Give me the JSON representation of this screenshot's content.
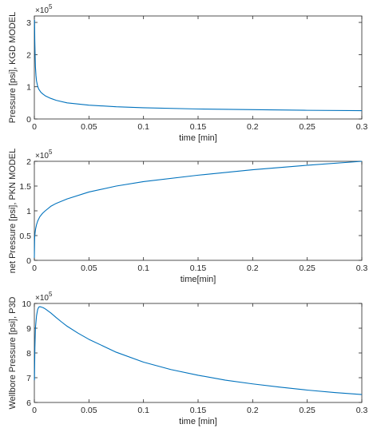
{
  "chart_data": [
    {
      "type": "line",
      "xlabel": "time [min]",
      "ylabel": "Pressure [psi], KGD MODEL",
      "y_exponent_label": "×10",
      "y_exponent": "5",
      "xlim": [
        0,
        0.3
      ],
      "ylim": [
        0,
        3.2
      ],
      "x_ticks": [
        0,
        0.05,
        0.1,
        0.15,
        0.2,
        0.25,
        0.3
      ],
      "x_tick_labels": [
        "0",
        "0.05",
        "0.1",
        "0.15",
        "0.2",
        "0.25",
        "0.3"
      ],
      "y_ticks": [
        0,
        1,
        2,
        3
      ],
      "y_tick_labels": [
        "0",
        "1",
        "2",
        "3"
      ],
      "grid": false,
      "line_color": "#0072BD",
      "series": [
        {
          "x": [
            0.0002,
            0.0004,
            0.0007,
            0.001,
            0.0015,
            0.002,
            0.003,
            0.004,
            0.006,
            0.008,
            0.01,
            0.015,
            0.02,
            0.03,
            0.05,
            0.075,
            0.1,
            0.15,
            0.2,
            0.25,
            0.3
          ],
          "y": [
            3.08,
            2.45,
            2.0,
            1.62,
            1.35,
            1.18,
            1.02,
            0.93,
            0.83,
            0.77,
            0.72,
            0.64,
            0.58,
            0.5,
            0.43,
            0.38,
            0.35,
            0.31,
            0.29,
            0.27,
            0.26
          ]
        }
      ]
    },
    {
      "type": "line",
      "xlabel": "time[min]",
      "ylabel": "net Pressure [psi], PKN MODEL",
      "y_exponent_label": "×10",
      "y_exponent": "5",
      "xlim": [
        0,
        0.3
      ],
      "ylim": [
        0,
        2
      ],
      "x_ticks": [
        0,
        0.05,
        0.1,
        0.15,
        0.2,
        0.25,
        0.3
      ],
      "x_tick_labels": [
        "0",
        "0.05",
        "0.1",
        "0.15",
        "0.2",
        "0.25",
        "0.3"
      ],
      "y_ticks": [
        0,
        0.5,
        1,
        1.5,
        2
      ],
      "y_tick_labels": [
        "0",
        "0.5",
        "1",
        "1.5",
        "2"
      ],
      "grid": false,
      "line_color": "#0072BD",
      "series": [
        {
          "x": [
            0,
            0.0003,
            0.0007,
            0.0012,
            0.002,
            0.003,
            0.005,
            0.0075,
            0.01,
            0.015,
            0.02,
            0.03,
            0.05,
            0.075,
            0.1,
            0.15,
            0.2,
            0.25,
            0.3
          ],
          "y": [
            0.05,
            0.46,
            0.56,
            0.64,
            0.72,
            0.79,
            0.88,
            0.95,
            1.0,
            1.09,
            1.15,
            1.24,
            1.38,
            1.5,
            1.59,
            1.72,
            1.83,
            1.92,
            2.0
          ]
        }
      ]
    },
    {
      "type": "line",
      "xlabel": "time [min]",
      "ylabel": "Wellbore Pressure [psi], P3D",
      "y_exponent_label": "×10",
      "y_exponent": "5",
      "xlim": [
        0,
        0.3
      ],
      "ylim": [
        6,
        10
      ],
      "x_ticks": [
        0,
        0.05,
        0.1,
        0.15,
        0.2,
        0.25,
        0.3
      ],
      "x_tick_labels": [
        "0",
        "0.05",
        "0.1",
        "0.15",
        "0.2",
        "0.25",
        "0.3"
      ],
      "y_ticks": [
        6,
        7,
        8,
        9,
        10
      ],
      "y_tick_labels": [
        "6",
        "7",
        "8",
        "9",
        "10"
      ],
      "grid": false,
      "line_color": "#0072BD",
      "series": [
        {
          "x": [
            0.0001,
            0.0005,
            0.001,
            0.002,
            0.003,
            0.004,
            0.005,
            0.006,
            0.008,
            0.01,
            0.015,
            0.02,
            0.025,
            0.03,
            0.04,
            0.05,
            0.075,
            0.1,
            0.125,
            0.15,
            0.175,
            0.2,
            0.225,
            0.25,
            0.275,
            0.3
          ],
          "y": [
            6.9,
            8.2,
            9.0,
            9.5,
            9.75,
            9.85,
            9.87,
            9.86,
            9.83,
            9.78,
            9.62,
            9.43,
            9.25,
            9.08,
            8.8,
            8.55,
            8.03,
            7.63,
            7.33,
            7.1,
            6.9,
            6.75,
            6.62,
            6.5,
            6.4,
            6.32
          ]
        }
      ]
    }
  ]
}
